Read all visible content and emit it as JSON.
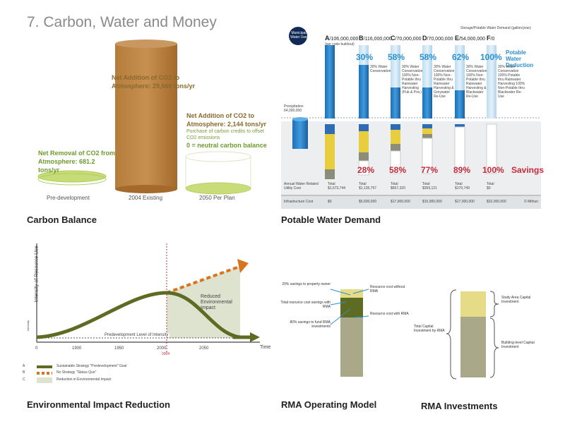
{
  "page_title": "7. Carbon, Water and Money",
  "carbon": {
    "title": "Carbon Balance",
    "existing_note": "Net Addition of CO2 to Atmosphere: 29,069 tons/yr",
    "plan_note": "Net Addition of CO2 to Atmosphere: 2,144 tons/yr",
    "plan_credit": "Purchase of carbon credits to offset CO2 emissions",
    "neutral": "0 = neutral carbon balance",
    "predev_note": "Net Removal of CO2 from Atmosphere: 681.2 tons/yr",
    "labels": [
      "Pre-development",
      "2004 Existing",
      "2050 Per Plan"
    ]
  },
  "water": {
    "title": "Potable  Water Demand",
    "header": "Storage/Potable Water Demand (gallon/year)",
    "badge": "Municipal Water Use",
    "scenarios": [
      {
        "id": "A",
        "value": "/106,000,000",
        "top_pct": "",
        "bottom_pct": "",
        "cost": "$1,573,744",
        "infra": "$0",
        "note": "(per code buildout)"
      },
      {
        "id": "B",
        "value": "/116,000,000",
        "top_pct": "30%",
        "bottom_pct": "28%",
        "cost": "$1,135,757",
        "infra": "$5,600,000",
        "note": "30% Water Conservation"
      },
      {
        "id": "C",
        "value": "/70,000,000",
        "top_pct": "58%",
        "bottom_pct": "58%",
        "cost": "$657,320",
        "infra": "$17,900,000",
        "note": "30% Water Conservation 100% Non-Potable thru Rainwater Harvesting (Pub & Priv.)"
      },
      {
        "id": "D",
        "value": "/70,000,000",
        "top_pct": "58%",
        "bottom_pct": "77%",
        "cost": "$359,121",
        "infra": "$15,900,000",
        "note": "30% Water Conservation 100% Non-Potable thru Rainwater Harvesting & Greywater Re-Use"
      },
      {
        "id": "E",
        "value": "/54,000,000",
        "top_pct": "62%",
        "bottom_pct": "89%",
        "cost": "$170,749",
        "infra": "$17,000,000",
        "note": "30% Water Conservation 100% Non-Potable thru Rainwater Harvesting & Blackwater Re-Use"
      },
      {
        "id": "F",
        "value": "/0",
        "top_pct": "100%",
        "bottom_pct": "100%",
        "cost": "$0",
        "infra": "$32,000,000",
        "note": "30% Water Conservation 100% Potable thru Rainwater Harvesting 100% Non-Potable thru Blackwater Re-Use"
      }
    ],
    "deduction_label": "Potable Water Deduction",
    "savings_label": "Savings",
    "precip_label": "Precipitation 64,000,000",
    "row_annual": "Annual Water Related Utility Cost",
    "row_total": "Total",
    "row_infra": "Infrastructure Cost",
    "credit": "© Mithun"
  },
  "env": {
    "title": "Environmental Impact Reduction",
    "y_axis": "Intensity of Resource Use",
    "y_small": "Intensity",
    "x_axis": "Time",
    "x_ticks": [
      "0",
      "1900",
      "1950",
      "2000",
      "2050"
    ],
    "x_sub": "2004",
    "baseline": "Predevelopment Level of Intensity",
    "reduced": "Reduced Environmental Impact",
    "legend": [
      {
        "key": "A",
        "label": "Sustainable Strategy \"Predevelopment\" Goal"
      },
      {
        "key": "B",
        "label": "No Strategy \"Status Quo\""
      },
      {
        "key": "C",
        "label": "Reduction in Environmental Impact"
      }
    ]
  },
  "rma_op": {
    "title": "RMA Operating Model",
    "left_labels": [
      "20% savings to property owner",
      "Total resource cost savings with RMA",
      "80% savings to fund RMA investments"
    ],
    "right_labels": [
      "Resource cost without RMA",
      "Resource cost with RMA"
    ]
  },
  "rma_inv": {
    "title": "RMA Investments",
    "left_label": "Total Capital Investment by RMA",
    "right_labels": [
      "Study Area Capital Investment",
      "Building-level Capital Investment"
    ]
  },
  "colors": {
    "olive": "#5e6b22",
    "tan": "#a9a98a",
    "yellow": "#e6db86",
    "blue": "#2b8fd0",
    "red": "#c8283c",
    "orange": "#d9741e"
  }
}
